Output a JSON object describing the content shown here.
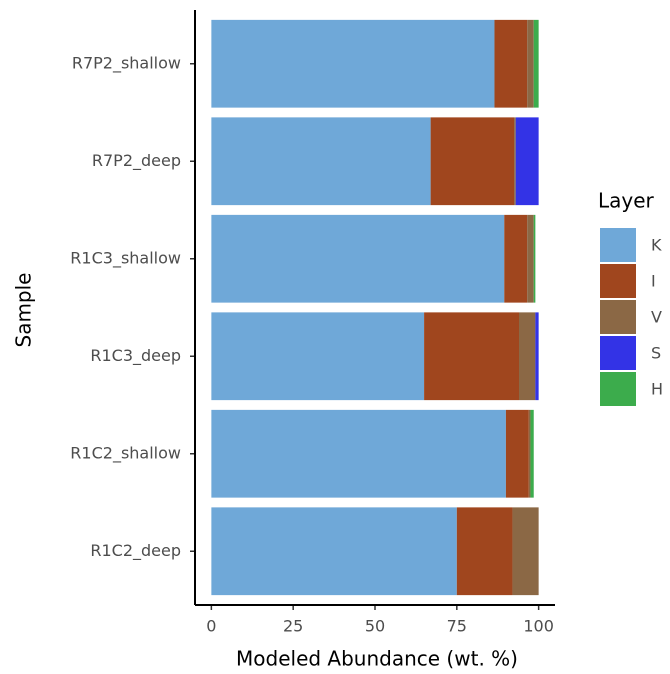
{
  "chart_data": {
    "type": "stacked_bar_horizontal",
    "x_label": "Modeled Abundance (wt. %)",
    "y_label": "Sample",
    "legend_title": "Layer",
    "categories": [
      "R7P2_shallow",
      "R7P2_deep",
      "R1C3_shallow",
      "R1C3_deep",
      "R1C2_shallow",
      "R1C2_deep"
    ],
    "series": [
      {
        "name": "K",
        "color": "#6fa8d8",
        "values": [
          86.5,
          67,
          89.5,
          65,
          90,
          75
        ]
      },
      {
        "name": "I",
        "color": "#a0461e",
        "values": [
          10,
          25.5,
          7,
          29,
          7,
          17
        ]
      },
      {
        "name": "V",
        "color": "#8b6845",
        "values": [
          2,
          0.5,
          2,
          5,
          0.5,
          8
        ]
      },
      {
        "name": "S",
        "color": "#3333e6",
        "values": [
          0,
          7,
          0,
          1,
          0,
          0
        ]
      },
      {
        "name": "H",
        "color": "#3cac4c",
        "values": [
          1.5,
          0,
          0.5,
          0,
          1,
          0
        ]
      }
    ],
    "xlim": [
      -5,
      105
    ],
    "xticks": [
      0,
      25,
      50,
      75,
      100
    ],
    "grid": false,
    "legend": "right"
  }
}
